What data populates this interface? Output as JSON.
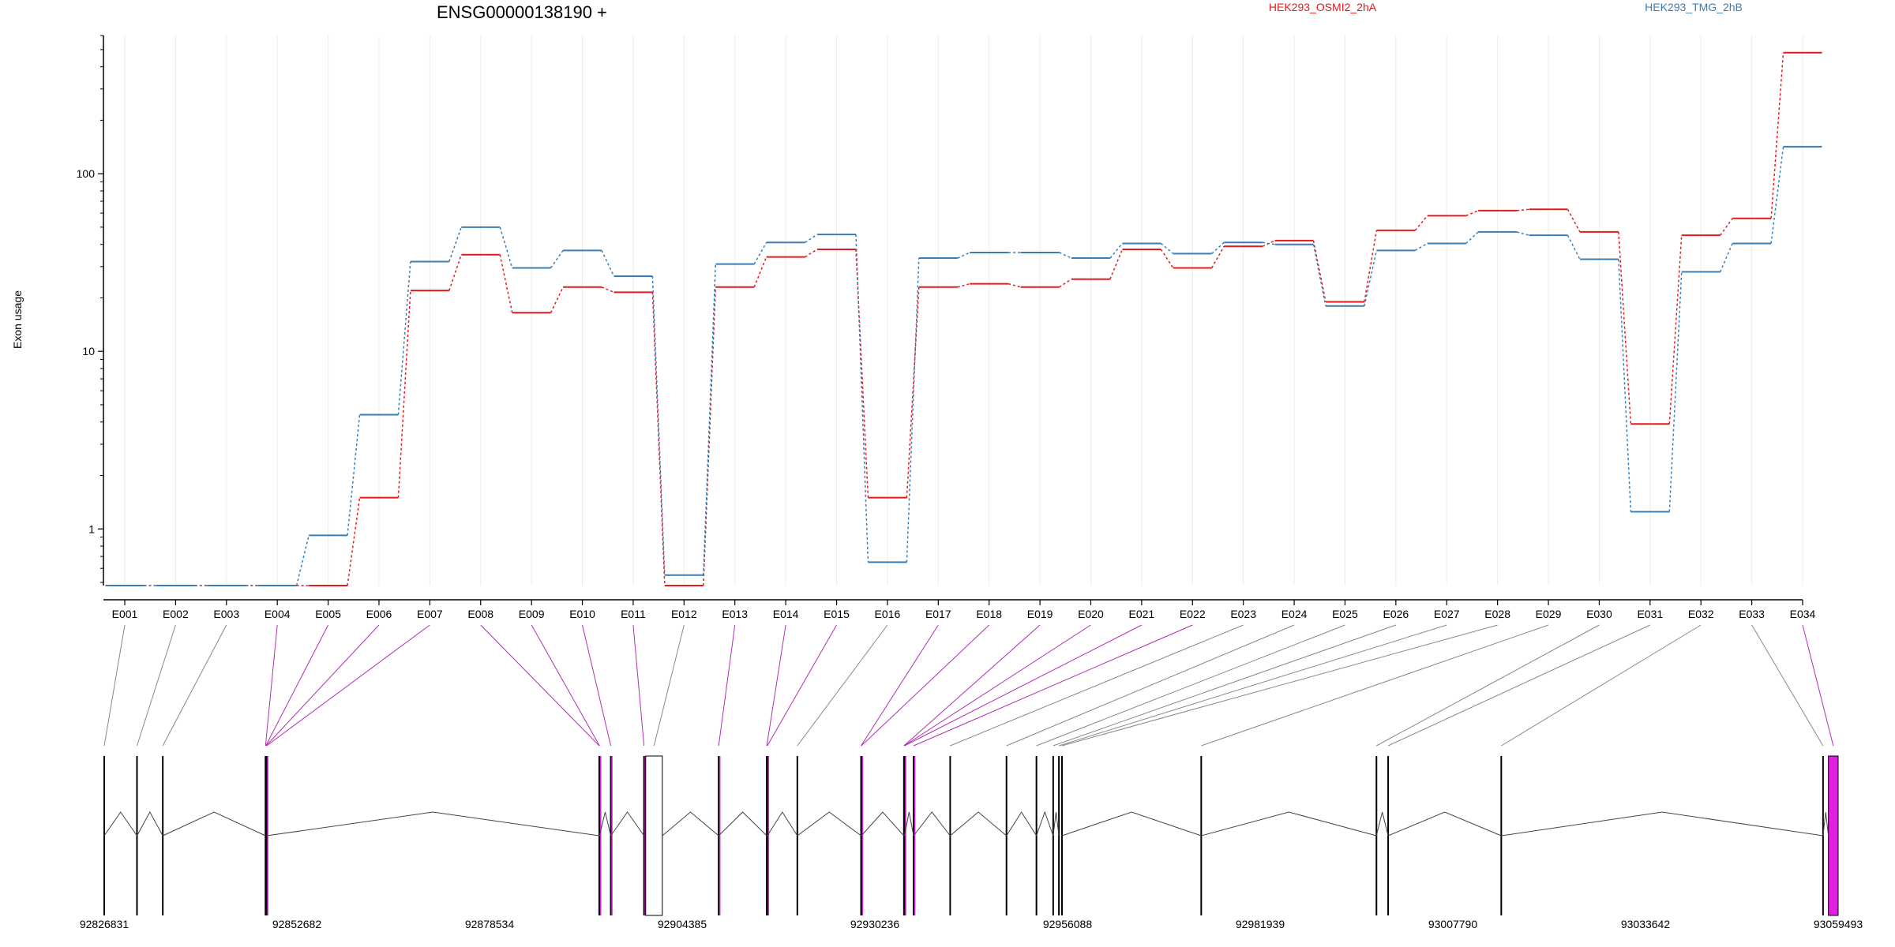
{
  "chart_data": {
    "type": "line",
    "title": "ENSG00000138190 +",
    "ylabel": "Exon usage",
    "xlabel": "",
    "y_scale": "log",
    "ylim": [
      0.48,
      600
    ],
    "y_ticks": [
      {
        "value": 1,
        "label": "1"
      },
      {
        "value": 10,
        "label": "10"
      },
      {
        "value": 100,
        "label": "100"
      }
    ],
    "categories": [
      "E001",
      "E002",
      "E003",
      "E004",
      "E005",
      "E006",
      "E007",
      "E008",
      "E009",
      "E010",
      "E011",
      "E012",
      "E013",
      "E014",
      "E015",
      "E016",
      "E017",
      "E018",
      "E019",
      "E020",
      "E021",
      "E022",
      "E023",
      "E024",
      "E025",
      "E026",
      "E027",
      "E028",
      "E029",
      "E030",
      "E031",
      "E032",
      "E033",
      "E034"
    ],
    "series": [
      {
        "name": "HEK293_OSMI2_2hA",
        "color": "#e41a1c",
        "values": [
          0.48,
          0.48,
          0.48,
          0.48,
          0.48,
          1.5,
          22,
          35,
          16.5,
          23,
          21.5,
          0.48,
          23,
          34,
          37.5,
          1.5,
          23,
          24,
          23,
          25.5,
          37.5,
          29.5,
          39,
          42,
          19,
          48,
          58,
          62,
          63,
          47,
          3.9,
          45,
          56,
          480
        ]
      },
      {
        "name": "HEK293_TMG_2hB",
        "color": "#377eb8",
        "values": [
          0.48,
          0.48,
          0.48,
          0.48,
          0.92,
          4.4,
          32,
          50,
          29.5,
          37,
          26.5,
          0.55,
          31,
          41,
          45.5,
          0.65,
          33.5,
          36,
          36,
          33.5,
          40.5,
          35.5,
          41,
          40,
          18,
          37,
          40.5,
          47,
          45,
          33,
          1.25,
          28,
          40.5,
          142
        ]
      }
    ],
    "grid": true,
    "legend_placement": "top-right",
    "gene_model": {
      "coordinate_ticks": [
        {
          "value": 92826831,
          "label": "92826831"
        },
        {
          "value": 92852682,
          "label": "92852682"
        },
        {
          "value": 92878534,
          "label": "92878534"
        },
        {
          "value": 92904385,
          "label": "92904385"
        },
        {
          "value": 92930236,
          "label": "92930236"
        },
        {
          "value": 92956088,
          "label": "92956088"
        },
        {
          "value": 92981939,
          "label": "92981939"
        },
        {
          "value": 93007790,
          "label": "93007790"
        },
        {
          "value": 93033642,
          "label": "93033642"
        },
        {
          "value": 93059493,
          "label": "93059493"
        }
      ],
      "range": [
        92826831,
        93059493
      ],
      "highlight_color": "#e020e0",
      "exons": [
        {
          "id": "E001",
          "start": 92826831,
          "end": 92826831,
          "significant": false
        },
        {
          "id": "E002",
          "start": 92831226,
          "end": 92831226,
          "significant": false
        },
        {
          "id": "E003",
          "start": 92834689,
          "end": 92834689,
          "significant": false
        },
        {
          "id": "E004",
          "start": 92848475,
          "end": 92848475,
          "significant": true
        },
        {
          "id": "E005",
          "start": 92848512,
          "end": 92848512,
          "significant": true
        },
        {
          "id": "E006",
          "start": 92848549,
          "end": 92848549,
          "significant": true
        },
        {
          "id": "E007",
          "start": 92848619,
          "end": 92848619,
          "significant": true
        },
        {
          "id": "E008",
          "start": 92893254,
          "end": 92893254,
          "significant": true
        },
        {
          "id": "E009",
          "start": 92893291,
          "end": 92893291,
          "significant": true
        },
        {
          "id": "E010",
          "start": 92894802,
          "end": 92894802,
          "significant": true
        },
        {
          "id": "E011",
          "start": 92899262,
          "end": 92899262,
          "significant": true
        },
        {
          "id": "E012",
          "start": 92899486,
          "end": 92901716,
          "significant": false
        },
        {
          "id": "E013",
          "start": 92909277,
          "end": 92909277,
          "significant": true
        },
        {
          "id": "E014",
          "start": 92915732,
          "end": 92915732,
          "significant": true
        },
        {
          "id": "E015",
          "start": 92915806,
          "end": 92915806,
          "significant": true
        },
        {
          "id": "E016",
          "start": 92919834,
          "end": 92919834,
          "significant": false
        },
        {
          "id": "E017",
          "start": 92928389,
          "end": 92928389,
          "significant": true
        },
        {
          "id": "E018",
          "start": 92928426,
          "end": 92928426,
          "significant": true
        },
        {
          "id": "E019",
          "start": 92934138,
          "end": 92934138,
          "significant": true
        },
        {
          "id": "E020",
          "start": 92934175,
          "end": 92934175,
          "significant": true
        },
        {
          "id": "E021",
          "start": 92934212,
          "end": 92934212,
          "significant": true
        },
        {
          "id": "E022",
          "start": 92935438,
          "end": 92935438,
          "significant": true
        },
        {
          "id": "E023",
          "start": 92940342,
          "end": 92940342,
          "significant": false
        },
        {
          "id": "E024",
          "start": 92947899,
          "end": 92947899,
          "significant": false
        },
        {
          "id": "E025",
          "start": 92951919,
          "end": 92951919,
          "significant": false
        },
        {
          "id": "E026",
          "start": 92954165,
          "end": 92954165,
          "significant": false
        },
        {
          "id": "E027",
          "start": 92954936,
          "end": 92954936,
          "significant": false
        },
        {
          "id": "E028",
          "start": 92955342,
          "end": 92955342,
          "significant": false
        },
        {
          "id": "E029",
          "start": 92974029,
          "end": 92974029,
          "significant": false
        },
        {
          "id": "E030",
          "start": 92997540,
          "end": 92997540,
          "significant": false
        },
        {
          "id": "E031",
          "start": 92999109,
          "end": 92999109,
          "significant": false
        },
        {
          "id": "E032",
          "start": 93014290,
          "end": 93014290,
          "significant": false
        },
        {
          "id": "E033",
          "start": 93057465,
          "end": 93057465,
          "significant": false
        },
        {
          "id": "E034",
          "start": 93058185,
          "end": 93059493,
          "significant": true
        }
      ]
    }
  }
}
